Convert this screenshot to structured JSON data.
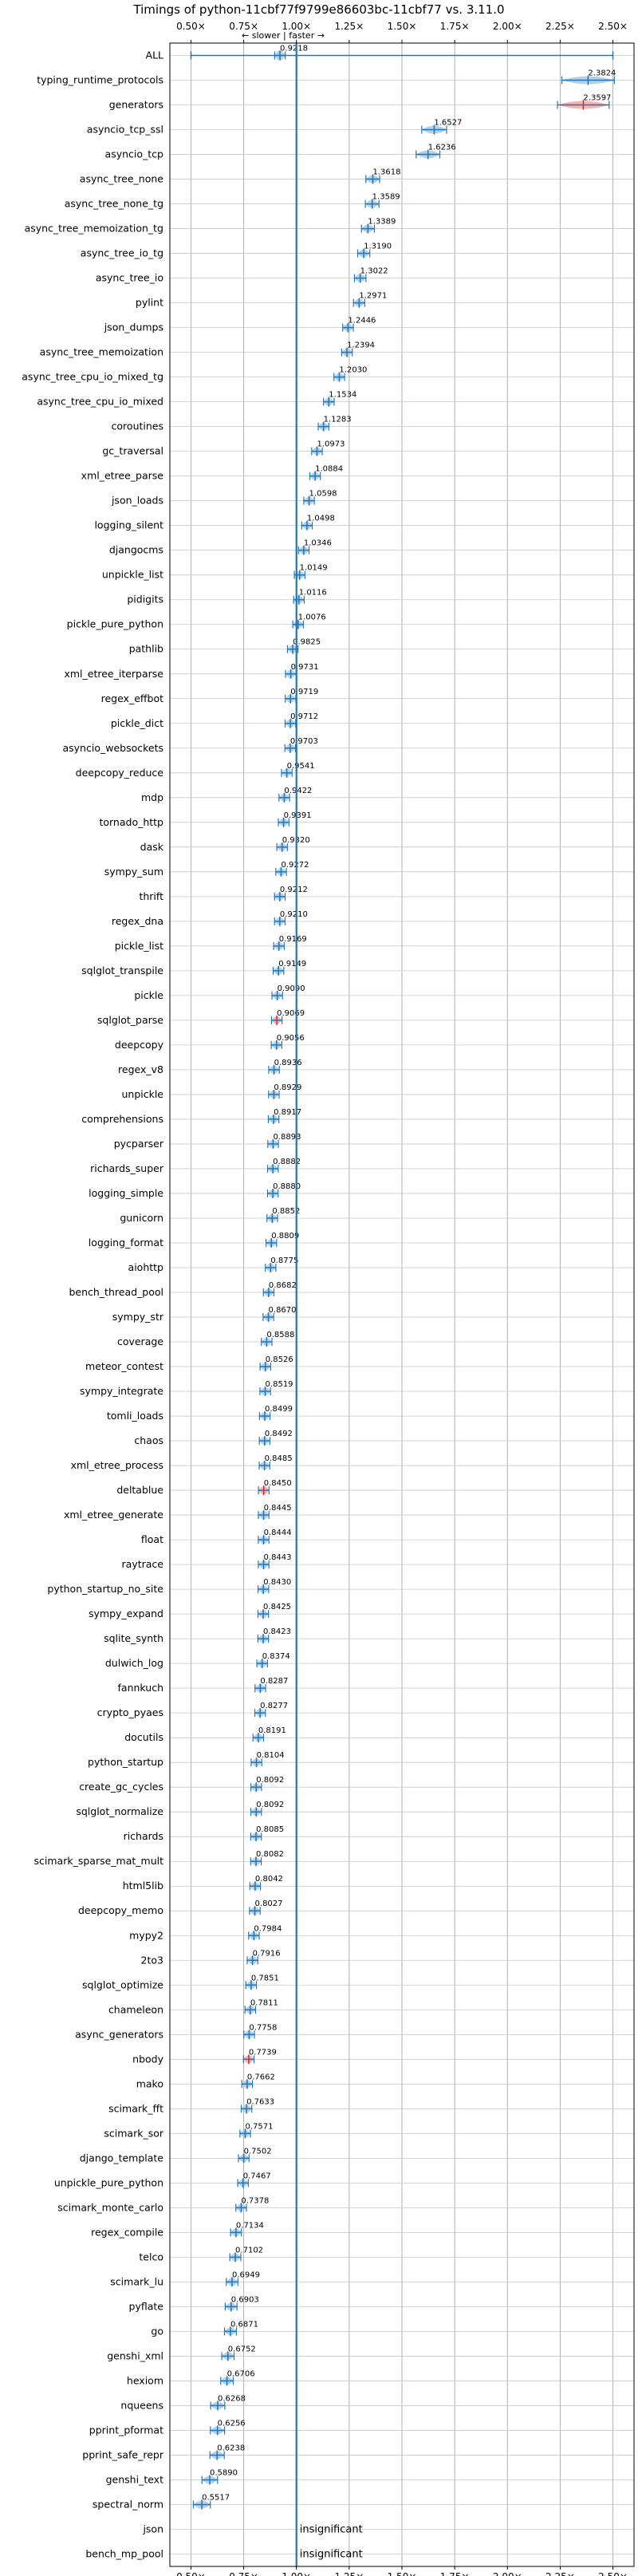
{
  "chart_data": {
    "type": "violin",
    "title": "Timings of python-11cbf77f9799e86603bc-11cbf77 vs. 3.11.0",
    "subtitle": "← slower | faster →",
    "xlim": [
      0.4,
      2.6
    ],
    "x_ticks": [
      0.5,
      0.75,
      1.0,
      1.25,
      1.5,
      1.75,
      2.0,
      2.25,
      2.5
    ],
    "x_tick_labels": [
      "0.50×",
      "0.75×",
      "1.00×",
      "1.25×",
      "1.50×",
      "1.75×",
      "2.00×",
      "2.25×",
      "2.50×"
    ],
    "reference_line": 1.0,
    "grid": true,
    "colors": {
      "violin": "#a8c8e8",
      "line": "#1f77b4",
      "slower": "#f4a6a6",
      "marker": "#d62728"
    },
    "insignificant_label": "insignificant",
    "benchmarks": [
      {
        "name": "ALL",
        "value": 0.9218,
        "label": "0.9218"
      },
      {
        "name": "typing_runtime_protocols",
        "value": 2.3824,
        "label": "2.3824"
      },
      {
        "name": "generators",
        "value": 2.3597,
        "label": "2.3597",
        "slower": true
      },
      {
        "name": "asyncio_tcp_ssl",
        "value": 1.6527,
        "label": "1.6527"
      },
      {
        "name": "asyncio_tcp",
        "value": 1.6236,
        "label": "1.6236"
      },
      {
        "name": "async_tree_none",
        "value": 1.3618,
        "label": "1.3618"
      },
      {
        "name": "async_tree_none_tg",
        "value": 1.3589,
        "label": "1.3589"
      },
      {
        "name": "async_tree_memoization_tg",
        "value": 1.3389,
        "label": "1.3389"
      },
      {
        "name": "async_tree_io_tg",
        "value": 1.319,
        "label": "1.3190"
      },
      {
        "name": "async_tree_io",
        "value": 1.3022,
        "label": "1.3022"
      },
      {
        "name": "pylint",
        "value": 1.2971,
        "label": "1.2971"
      },
      {
        "name": "json_dumps",
        "value": 1.2446,
        "label": "1.2446"
      },
      {
        "name": "async_tree_memoization",
        "value": 1.2394,
        "label": "1.2394"
      },
      {
        "name": "async_tree_cpu_io_mixed_tg",
        "value": 1.203,
        "label": "1.2030"
      },
      {
        "name": "async_tree_cpu_io_mixed",
        "value": 1.1534,
        "label": "1.1534"
      },
      {
        "name": "coroutines",
        "value": 1.1283,
        "label": "1.1283"
      },
      {
        "name": "gc_traversal",
        "value": 1.0973,
        "label": "1.0973"
      },
      {
        "name": "xml_etree_parse",
        "value": 1.0884,
        "label": "1.0884"
      },
      {
        "name": "json_loads",
        "value": 1.0598,
        "label": "1.0598"
      },
      {
        "name": "logging_silent",
        "value": 1.0498,
        "label": "1.0498"
      },
      {
        "name": "djangocms",
        "value": 1.0346,
        "label": "1.0346"
      },
      {
        "name": "unpickle_list",
        "value": 1.0149,
        "label": "1.0149"
      },
      {
        "name": "pidigits",
        "value": 1.0116,
        "label": "1.0116"
      },
      {
        "name": "pickle_pure_python",
        "value": 1.0076,
        "label": "1.0076"
      },
      {
        "name": "pathlib",
        "value": 0.9825,
        "label": "0.9825"
      },
      {
        "name": "xml_etree_iterparse",
        "value": 0.9731,
        "label": "0.9731"
      },
      {
        "name": "regex_effbot",
        "value": 0.9719,
        "label": "0.9719"
      },
      {
        "name": "pickle_dict",
        "value": 0.9712,
        "label": "0.9712"
      },
      {
        "name": "asyncio_websockets",
        "value": 0.9703,
        "label": "0.9703"
      },
      {
        "name": "deepcopy_reduce",
        "value": 0.9541,
        "label": "0.9541"
      },
      {
        "name": "mdp",
        "value": 0.9422,
        "label": "0.9422"
      },
      {
        "name": "tornado_http",
        "value": 0.9391,
        "label": "0.9391"
      },
      {
        "name": "dask",
        "value": 0.932,
        "label": "0.9320"
      },
      {
        "name": "sympy_sum",
        "value": 0.9272,
        "label": "0.9272"
      },
      {
        "name": "thrift",
        "value": 0.9212,
        "label": "0.9212"
      },
      {
        "name": "regex_dna",
        "value": 0.921,
        "label": "0.9210"
      },
      {
        "name": "pickle_list",
        "value": 0.9169,
        "label": "0.9169"
      },
      {
        "name": "sqlglot_transpile",
        "value": 0.9149,
        "label": "0.9149"
      },
      {
        "name": "pickle",
        "value": 0.909,
        "label": "0.9090"
      },
      {
        "name": "sqlglot_parse",
        "value": 0.9069,
        "label": "0.9069",
        "slower": true
      },
      {
        "name": "deepcopy",
        "value": 0.9056,
        "label": "0.9056"
      },
      {
        "name": "regex_v8",
        "value": 0.8936,
        "label": "0.8936"
      },
      {
        "name": "unpickle",
        "value": 0.8929,
        "label": "0.8929"
      },
      {
        "name": "comprehensions",
        "value": 0.8917,
        "label": "0.8917"
      },
      {
        "name": "pycparser",
        "value": 0.8893,
        "label": "0.8893"
      },
      {
        "name": "richards_super",
        "value": 0.8882,
        "label": "0.8882"
      },
      {
        "name": "logging_simple",
        "value": 0.888,
        "label": "0.8880"
      },
      {
        "name": "gunicorn",
        "value": 0.8852,
        "label": "0.8852"
      },
      {
        "name": "logging_format",
        "value": 0.8809,
        "label": "0.8809"
      },
      {
        "name": "aiohttp",
        "value": 0.8775,
        "label": "0.8775"
      },
      {
        "name": "bench_thread_pool",
        "value": 0.8682,
        "label": "0.8682"
      },
      {
        "name": "sympy_str",
        "value": 0.867,
        "label": "0.8670"
      },
      {
        "name": "coverage",
        "value": 0.8588,
        "label": "0.8588"
      },
      {
        "name": "meteor_contest",
        "value": 0.8526,
        "label": "0.8526"
      },
      {
        "name": "sympy_integrate",
        "value": 0.8519,
        "label": "0.8519"
      },
      {
        "name": "tomli_loads",
        "value": 0.8499,
        "label": "0.8499"
      },
      {
        "name": "chaos",
        "value": 0.8492,
        "label": "0.8492"
      },
      {
        "name": "xml_etree_process",
        "value": 0.8485,
        "label": "0.8485"
      },
      {
        "name": "deltablue",
        "value": 0.845,
        "label": "0.8450",
        "slower": true
      },
      {
        "name": "xml_etree_generate",
        "value": 0.8445,
        "label": "0.8445"
      },
      {
        "name": "float",
        "value": 0.8444,
        "label": "0.8444"
      },
      {
        "name": "raytrace",
        "value": 0.8443,
        "label": "0.8443"
      },
      {
        "name": "python_startup_no_site",
        "value": 0.843,
        "label": "0.8430"
      },
      {
        "name": "sympy_expand",
        "value": 0.8425,
        "label": "0.8425"
      },
      {
        "name": "sqlite_synth",
        "value": 0.8423,
        "label": "0.8423"
      },
      {
        "name": "dulwich_log",
        "value": 0.8374,
        "label": "0.8374"
      },
      {
        "name": "fannkuch",
        "value": 0.8287,
        "label": "0.8287"
      },
      {
        "name": "crypto_pyaes",
        "value": 0.8277,
        "label": "0.8277"
      },
      {
        "name": "docutils",
        "value": 0.8191,
        "label": "0.8191"
      },
      {
        "name": "python_startup",
        "value": 0.8104,
        "label": "0.8104"
      },
      {
        "name": "create_gc_cycles",
        "value": 0.8092,
        "label": "0.8092"
      },
      {
        "name": "sqlglot_normalize",
        "value": 0.8092,
        "label": "0.8092"
      },
      {
        "name": "richards",
        "value": 0.8085,
        "label": "0.8085"
      },
      {
        "name": "scimark_sparse_mat_mult",
        "value": 0.8082,
        "label": "0.8082"
      },
      {
        "name": "html5lib",
        "value": 0.8042,
        "label": "0.8042"
      },
      {
        "name": "deepcopy_memo",
        "value": 0.8027,
        "label": "0.8027"
      },
      {
        "name": "mypy2",
        "value": 0.7984,
        "label": "0.7984"
      },
      {
        "name": "2to3",
        "value": 0.7916,
        "label": "0.7916"
      },
      {
        "name": "sqlglot_optimize",
        "value": 0.7851,
        "label": "0.7851"
      },
      {
        "name": "chameleon",
        "value": 0.7811,
        "label": "0.7811"
      },
      {
        "name": "async_generators",
        "value": 0.7758,
        "label": "0.7758"
      },
      {
        "name": "nbody",
        "value": 0.7739,
        "label": "0.7739",
        "slower": true
      },
      {
        "name": "mako",
        "value": 0.7662,
        "label": "0.7662"
      },
      {
        "name": "scimark_fft",
        "value": 0.7633,
        "label": "0.7633"
      },
      {
        "name": "scimark_sor",
        "value": 0.7571,
        "label": "0.7571"
      },
      {
        "name": "django_template",
        "value": 0.7502,
        "label": "0.7502"
      },
      {
        "name": "unpickle_pure_python",
        "value": 0.7467,
        "label": "0.7467"
      },
      {
        "name": "scimark_monte_carlo",
        "value": 0.7378,
        "label": "0.7378"
      },
      {
        "name": "regex_compile",
        "value": 0.7134,
        "label": "0.7134"
      },
      {
        "name": "telco",
        "value": 0.7102,
        "label": "0.7102"
      },
      {
        "name": "scimark_lu",
        "value": 0.6949,
        "label": "0.6949"
      },
      {
        "name": "pyflate",
        "value": 0.6903,
        "label": "0.6903"
      },
      {
        "name": "go",
        "value": 0.6871,
        "label": "0.6871"
      },
      {
        "name": "genshi_xml",
        "value": 0.6752,
        "label": "0.6752"
      },
      {
        "name": "hexiom",
        "value": 0.6706,
        "label": "0.6706"
      },
      {
        "name": "nqueens",
        "value": 0.6268,
        "label": "0.6268"
      },
      {
        "name": "pprint_pformat",
        "value": 0.6256,
        "label": "0.6256"
      },
      {
        "name": "pprint_safe_repr",
        "value": 0.6238,
        "label": "0.6238"
      },
      {
        "name": "genshi_text",
        "value": 0.589,
        "label": "0.5890"
      },
      {
        "name": "spectral_norm",
        "value": 0.5517,
        "label": "0.5517"
      },
      {
        "name": "json",
        "value": null,
        "insignificant": true
      },
      {
        "name": "bench_mp_pool",
        "value": null,
        "insignificant": true
      }
    ]
  }
}
